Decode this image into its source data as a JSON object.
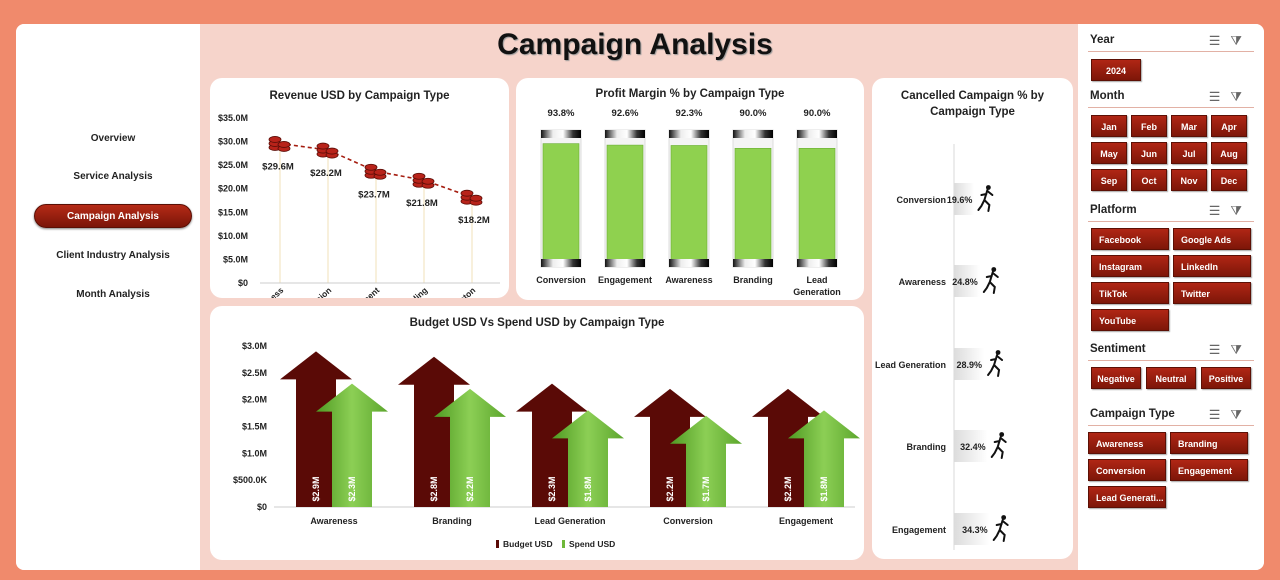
{
  "title": "Campaign Analysis",
  "nav": {
    "items": [
      {
        "label": "Overview"
      },
      {
        "label": "Service Analysis"
      },
      {
        "label": "Campaign Analysis"
      },
      {
        "label": "Client Industry Analysis"
      },
      {
        "label": "Month Analysis"
      }
    ],
    "active_index": 2
  },
  "filters": {
    "year": {
      "label": "Year",
      "options": [
        "2024"
      ]
    },
    "month": {
      "label": "Month",
      "options": [
        "Jan",
        "Feb",
        "Mar",
        "Apr",
        "May",
        "Jun",
        "Jul",
        "Aug",
        "Sep",
        "Oct",
        "Nov",
        "Dec"
      ]
    },
    "platform": {
      "label": "Platform",
      "options": [
        "Facebook",
        "Google Ads",
        "Instagram",
        "LinkedIn",
        "TikTok",
        "Twitter",
        "YouTube"
      ]
    },
    "sentiment": {
      "label": "Sentiment",
      "options": [
        "Negative",
        "Neutral",
        "Positive"
      ]
    },
    "campaign_type": {
      "label": "Campaign Type",
      "options": [
        "Awareness",
        "Branding",
        "Conversion",
        "Engagement",
        "Lead Generati..."
      ]
    },
    "icons": [
      "multi-select-icon",
      "clear-filter-icon"
    ]
  },
  "colors": {
    "accent": "#8b1a0c",
    "budget": "#5a0a06",
    "spend": "#6fb83a",
    "bar_green": "#8fd14f",
    "frame": "#f08a6c"
  },
  "chart_data": [
    {
      "type": "line",
      "title": "Revenue USD by Campaign Type",
      "categories": [
        "Awareness",
        "Conversion",
        "Engagement",
        "Branding",
        "Lead Generaton"
      ],
      "values": [
        29.6,
        28.2,
        23.7,
        21.8,
        18.2
      ],
      "data_labels": [
        "$29.6M",
        "$28.2M",
        "$23.7M",
        "$21.8M",
        "$18.2M"
      ],
      "y_ticks": [
        "$0",
        "$5.0M",
        "$10.0M",
        "$15.0M",
        "$20.0M",
        "$25.0M",
        "$30.0M",
        "$35.0M"
      ],
      "ylim": [
        0,
        35
      ],
      "marker": "coin-stack-icon"
    },
    {
      "type": "bar",
      "title": "Profit Margin % by Campaign Type",
      "categories": [
        "Conversion",
        "Engagement",
        "Awareness",
        "Branding",
        "Lead Generation"
      ],
      "values": [
        93.8,
        92.6,
        92.3,
        90.0,
        90.0
      ],
      "data_labels": [
        "93.8%",
        "92.6%",
        "92.3%",
        "90.0%",
        "90.0%"
      ],
      "ylim": [
        0,
        100
      ]
    },
    {
      "type": "bar",
      "title": "Budget USD Vs Spend USD by Campaign Type",
      "categories": [
        "Awareness",
        "Branding",
        "Lead Generation",
        "Conversion",
        "Engagement"
      ],
      "series": [
        {
          "name": "Budget USD",
          "values": [
            2.9,
            2.8,
            2.3,
            2.2,
            2.2
          ],
          "labels": [
            "$2.9M",
            "$2.8M",
            "$2.3M",
            "$2.2M",
            "$2.2M"
          ]
        },
        {
          "name": "Spend USD",
          "values": [
            2.3,
            2.2,
            1.8,
            1.7,
            1.8
          ],
          "labels": [
            "$2.3M",
            "$2.2M",
            "$1.8M",
            "$1.7M",
            "$1.8M"
          ]
        }
      ],
      "y_ticks": [
        "$0",
        "$500.0K",
        "$1.0M",
        "$1.5M",
        "$2.0M",
        "$2.5M",
        "$3.0M"
      ],
      "ylim": [
        0,
        3.0
      ],
      "legend": "bottom"
    },
    {
      "type": "bar",
      "title": "Cancelled Campaign % by Campaign Type",
      "categories": [
        "Conversion",
        "Awareness",
        "Lead Generation",
        "Branding",
        "Engagement"
      ],
      "values": [
        19.6,
        24.8,
        28.9,
        32.4,
        34.3
      ],
      "data_labels": [
        "19.6%",
        "24.8%",
        "28.9%",
        "32.4%",
        "34.3%"
      ],
      "marker": "runner-icon"
    }
  ]
}
